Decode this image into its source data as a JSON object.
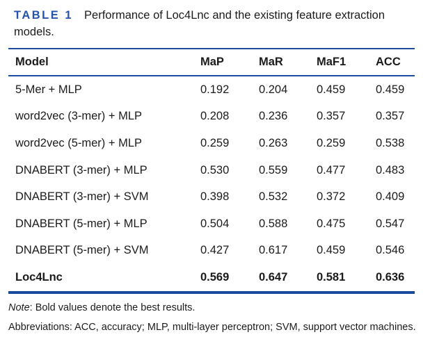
{
  "caption": {
    "label": "TABLE 1",
    "text": "Performance of Loc4Lnc and the existing feature extraction models."
  },
  "table": {
    "columns": [
      "Model",
      "MaP",
      "MaR",
      "MaF1",
      "ACC"
    ],
    "rows": [
      {
        "model": "5-Mer + MLP",
        "values": [
          "0.192",
          "0.204",
          "0.459",
          "0.459"
        ],
        "bold": false
      },
      {
        "model": "word2vec (3-mer) + MLP",
        "values": [
          "0.208",
          "0.236",
          "0.357",
          "0.357"
        ],
        "bold": false
      },
      {
        "model": "word2vec (5-mer) + MLP",
        "values": [
          "0.259",
          "0.263",
          "0.259",
          "0.538"
        ],
        "bold": false
      },
      {
        "model": "DNABERT (3-mer) + MLP",
        "values": [
          "0.530",
          "0.559",
          "0.477",
          "0.483"
        ],
        "bold": false
      },
      {
        "model": "DNABERT (3-mer) + SVM",
        "values": [
          "0.398",
          "0.532",
          "0.372",
          "0.409"
        ],
        "bold": false
      },
      {
        "model": "DNABERT (5-mer) + MLP",
        "values": [
          "0.504",
          "0.588",
          "0.475",
          "0.547"
        ],
        "bold": false
      },
      {
        "model": "DNABERT (5-mer) + SVM",
        "values": [
          "0.427",
          "0.617",
          "0.459",
          "0.546"
        ],
        "bold": false
      },
      {
        "model": "Loc4Lnc",
        "values": [
          "0.569",
          "0.647",
          "0.581",
          "0.636"
        ],
        "bold": true
      }
    ]
  },
  "notes": {
    "note_label": "Note",
    "note_rest": ": Bold values denote the best results.",
    "abbreviations": "Abbreviations: ACC, accuracy; MLP, multi-layer perceptron; SVM, support vector machines."
  },
  "colors": {
    "rule_blue": "#1b4b9e",
    "caption_blue": "#2453ae",
    "text": "#1b1b1b"
  }
}
